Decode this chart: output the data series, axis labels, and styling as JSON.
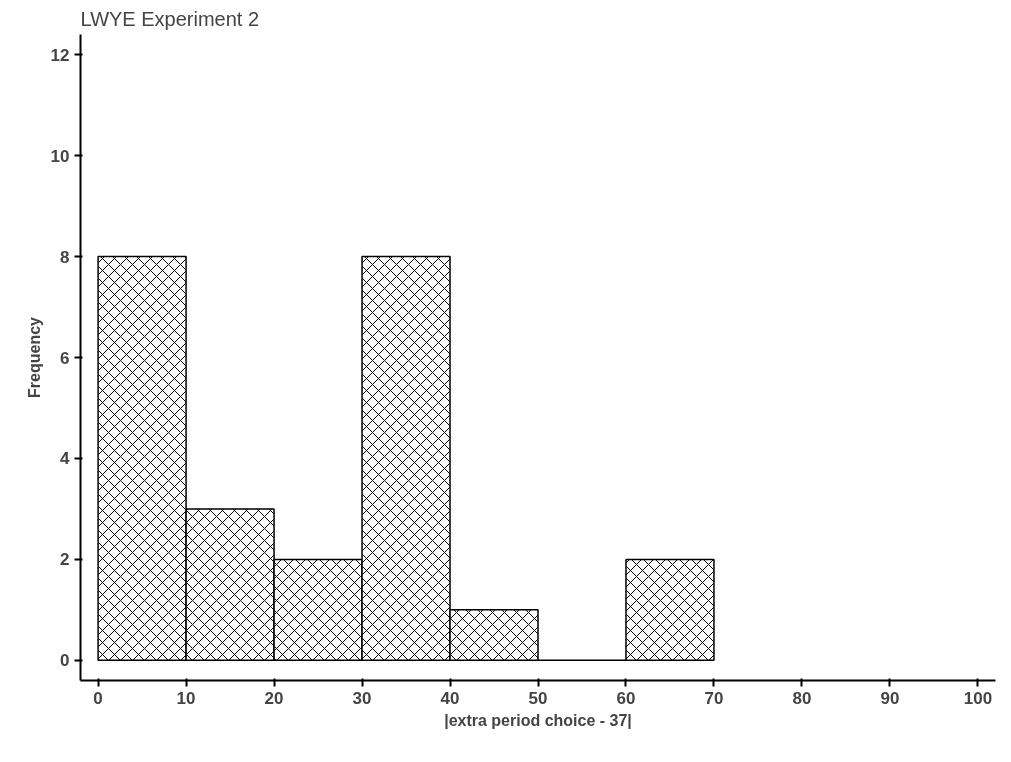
{
  "chart_data": {
    "type": "histogram",
    "title": "LWYE Experiment 2",
    "xlabel": "|extra period choice - 37|",
    "ylabel": "Frequency",
    "bins": [
      0,
      10,
      20,
      30,
      40,
      50,
      60,
      70
    ],
    "values": [
      8,
      3,
      2,
      8,
      1,
      0,
      2
    ],
    "color": "#000000",
    "xlim": [
      -2,
      102
    ],
    "xticks": [
      0,
      10,
      20,
      30,
      40,
      50,
      60,
      70,
      80,
      90,
      100
    ],
    "ylim": [
      -0.4,
      12.4
    ],
    "yticks": [
      0,
      2,
      4,
      6,
      8,
      10,
      12
    ],
    "grid": false
  }
}
